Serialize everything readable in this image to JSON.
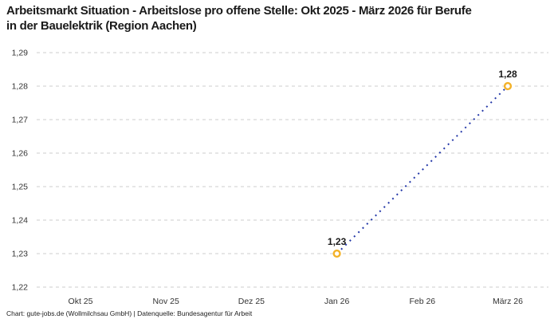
{
  "page": {
    "title": "Arbeitsmarkt Situation - Arbeitslose pro offene Stelle: Okt 2025 - März 2026 für Berufe in der Bauelektrik (Region Aachen)",
    "attribution": "Chart: gute-jobs.de (Wollmilchsau GmbH) | Datenquelle: Bundesagentur für Arbeit"
  },
  "colors": {
    "line": "#2438a8",
    "marker": "#f3b229",
    "marker_fill": "#ffffff",
    "grid": "#cccccc",
    "title_text": "#1a1a1a",
    "axis_text": "#333333",
    "value_label_text": "#1a1a1a",
    "background": "#ffffff"
  },
  "chart_data": {
    "type": "line",
    "title": "Arbeitsmarkt Situation - Arbeitslose pro offene Stelle: Okt 2025 - März 2026 für Berufe in der Bauelektrik (Region Aachen)",
    "categories": [
      "Okt 25",
      "Nov 25",
      "Dez 25",
      "Jan 26",
      "Feb 26",
      "März 26"
    ],
    "series": [
      {
        "name": "Arbeitslose pro offene Stelle",
        "values": [
          null,
          null,
          null,
          1.23,
          null,
          1.28
        ]
      }
    ],
    "point_labels": [
      null,
      null,
      null,
      "1,23",
      null,
      "1,28"
    ],
    "ylim": [
      1.22,
      1.29
    ],
    "yticks": [
      1.29,
      1.28,
      1.27,
      1.26,
      1.25,
      1.24,
      1.23,
      1.22
    ],
    "ytick_labels": [
      "1,29",
      "1,28",
      "1,27",
      "1,26",
      "1,25",
      "1,24",
      "1,23",
      "1,22"
    ],
    "xlabel": "",
    "ylabel": "",
    "grid": "horizontal-dashed",
    "legend": "none",
    "line_style": "dotted",
    "marker_style": "open-circle"
  }
}
